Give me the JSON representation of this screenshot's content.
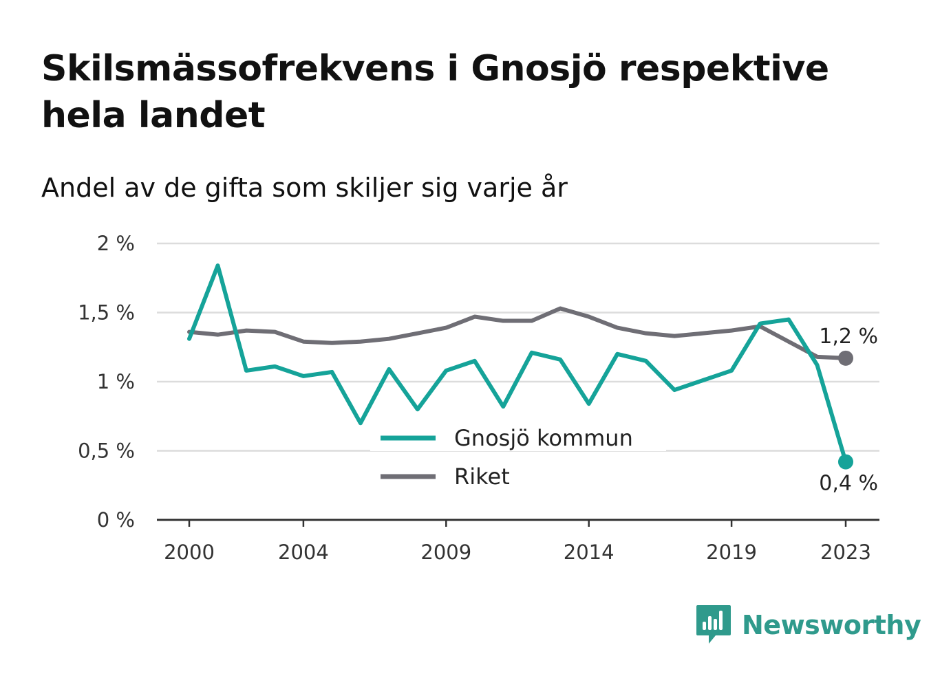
{
  "title": "Skilsmässofrekvens i Gnosjö respektive hela landet",
  "subtitle": "Andel av de gifta som skiljer sig varje år",
  "brand": "Newsworthy",
  "colors": {
    "gnosjo": "#15a399",
    "riket": "#6f6e75",
    "grid": "#dcdcdc",
    "axis": "#333333",
    "brand": "#2f9a8c"
  },
  "chart_data": {
    "type": "line",
    "x": [
      2000,
      2001,
      2002,
      2003,
      2004,
      2005,
      2006,
      2007,
      2008,
      2009,
      2010,
      2011,
      2012,
      2013,
      2014,
      2015,
      2016,
      2017,
      2018,
      2019,
      2020,
      2021,
      2022,
      2023
    ],
    "x_ticks": [
      2000,
      2004,
      2009,
      2014,
      2019,
      2023
    ],
    "y_ticks": [
      0,
      0.5,
      1,
      1.5,
      2
    ],
    "y_tick_labels": [
      "0 %",
      "0,5 %",
      "1 %",
      "1,5 %",
      "2 %"
    ],
    "ylim": [
      0,
      2
    ],
    "grid": true,
    "legend_position": "center",
    "series": [
      {
        "name": "Gnosjö kommun",
        "color": "#15a399",
        "values": [
          1.31,
          1.84,
          1.08,
          1.11,
          1.04,
          1.07,
          0.7,
          1.09,
          0.8,
          1.08,
          1.15,
          0.82,
          1.21,
          1.16,
          0.84,
          1.2,
          1.15,
          0.94,
          1.01,
          1.08,
          1.42,
          1.45,
          1.12,
          0.42
        ],
        "end_label": "0,4 %"
      },
      {
        "name": "Riket",
        "color": "#6f6e75",
        "values": [
          1.36,
          1.34,
          1.37,
          1.36,
          1.29,
          1.28,
          1.29,
          1.31,
          1.35,
          1.39,
          1.47,
          1.44,
          1.44,
          1.53,
          1.47,
          1.39,
          1.35,
          1.33,
          1.35,
          1.37,
          1.4,
          1.29,
          1.18,
          1.17
        ],
        "end_label": "1,2 %"
      }
    ]
  }
}
